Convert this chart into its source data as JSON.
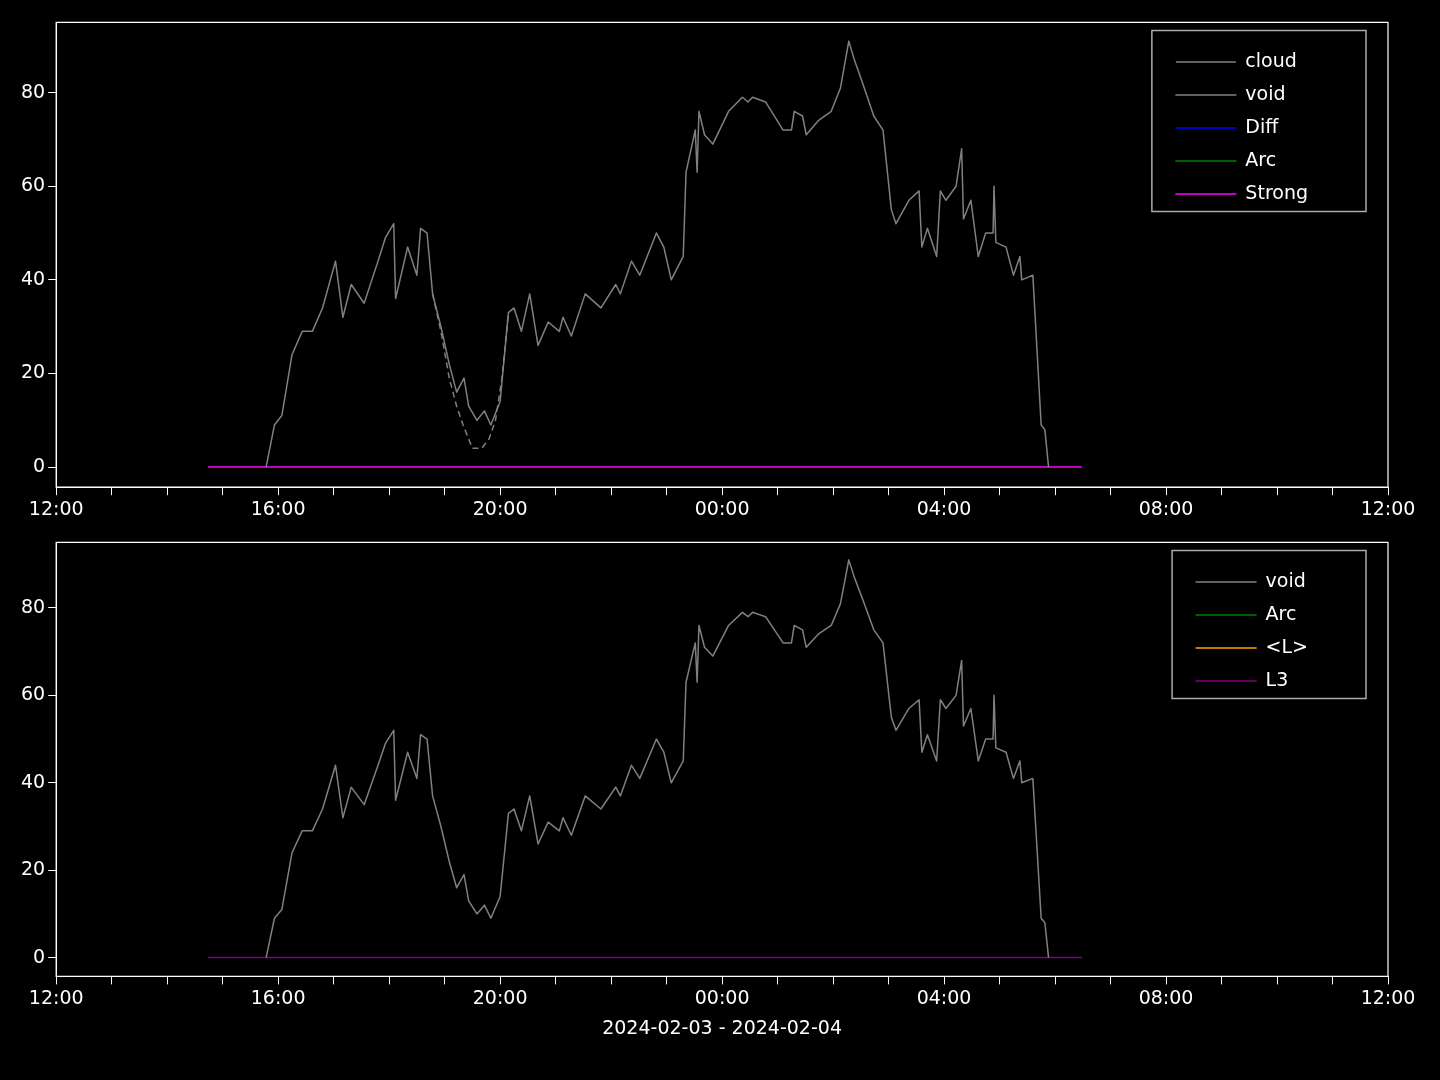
{
  "chart_data": [
    {
      "type": "line",
      "xlim": [
        "2024-02-03T12:00",
        "2024-02-04T12:00"
      ],
      "ylim": [
        -4.3,
        95
      ],
      "yticks": [
        0,
        20,
        40,
        60,
        80
      ],
      "xticks": [
        {
          "value": "2024-02-03T12:00",
          "label": "12:00"
        },
        {
          "value": "2024-02-03T13:00",
          "label": null
        },
        {
          "value": "2024-02-03T14:00",
          "label": null
        },
        {
          "value": "2024-02-03T15:00",
          "label": null
        },
        {
          "value": "2024-02-03T16:00",
          "label": "16:00"
        },
        {
          "value": "2024-02-03T17:00",
          "label": null
        },
        {
          "value": "2024-02-03T18:00",
          "label": null
        },
        {
          "value": "2024-02-03T19:00",
          "label": null
        },
        {
          "value": "2024-02-03T20:00",
          "label": "20:00"
        },
        {
          "value": "2024-02-03T21:00",
          "label": null
        },
        {
          "value": "2024-02-03T22:00",
          "label": null
        },
        {
          "value": "2024-02-03T23:00",
          "label": null
        },
        {
          "value": "2024-02-04T00:00",
          "label": "00:00"
        },
        {
          "value": "2024-02-04T01:00",
          "label": null
        },
        {
          "value": "2024-02-04T02:00",
          "label": null
        },
        {
          "value": "2024-02-04T03:00",
          "label": null
        },
        {
          "value": "2024-02-04T04:00",
          "label": "04:00"
        },
        {
          "value": "2024-02-04T05:00",
          "label": null
        },
        {
          "value": "2024-02-04T06:00",
          "label": null
        },
        {
          "value": "2024-02-04T07:00",
          "label": null
        },
        {
          "value": "2024-02-04T08:00",
          "label": "08:00"
        },
        {
          "value": "2024-02-04T09:00",
          "label": null
        },
        {
          "value": "2024-02-04T10:00",
          "label": null
        },
        {
          "value": "2024-02-04T11:00",
          "label": null
        },
        {
          "value": "2024-02-04T12:00",
          "label": "12:00"
        }
      ],
      "legend": "top right",
      "grid": false,
      "series": [
        {
          "name": "cloud",
          "color": "#808080",
          "line_style": "dashed",
          "x": [
            "2024-02-03T18:47",
            "2024-02-03T18:56",
            "2024-02-03T19:05",
            "2024-02-03T19:13",
            "2024-02-03T19:20",
            "2024-02-03T19:30",
            "2024-02-03T19:40",
            "2024-02-03T19:48",
            "2024-02-03T19:55",
            "2024-02-03T20:02",
            "2024-02-03T20:09"
          ],
          "values": [
            37,
            29,
            19,
            13,
            9,
            4,
            4,
            6,
            10,
            19,
            33
          ]
        },
        {
          "name": "void",
          "color": "#808080",
          "x": [
            "2024-02-03T15:47",
            "2024-02-03T15:56",
            "2024-02-03T16:04",
            "2024-02-03T16:15",
            "2024-02-03T16:26",
            "2024-02-03T16:37",
            "2024-02-03T16:48",
            "2024-02-03T17:02",
            "2024-02-03T17:10",
            "2024-02-03T17:19",
            "2024-02-03T17:33",
            "2024-02-03T17:48",
            "2024-02-03T17:56",
            "2024-02-03T18:05",
            "2024-02-03T18:07",
            "2024-02-03T18:20",
            "2024-02-03T18:30",
            "2024-02-03T18:34",
            "2024-02-03T18:41",
            "2024-02-03T18:47",
            "2024-02-03T18:56",
            "2024-02-03T19:05",
            "2024-02-03T19:13",
            "2024-02-03T19:21",
            "2024-02-03T19:26",
            "2024-02-03T19:35",
            "2024-02-03T19:43",
            "2024-02-03T19:50",
            "2024-02-03T20:00",
            "2024-02-03T20:09",
            "2024-02-03T20:15",
            "2024-02-03T20:23",
            "2024-02-03T20:32",
            "2024-02-03T20:41",
            "2024-02-03T20:52",
            "2024-02-03T21:04",
            "2024-02-03T21:08",
            "2024-02-03T21:17",
            "2024-02-03T21:32",
            "2024-02-03T21:49",
            "2024-02-03T22:05",
            "2024-02-03T22:10",
            "2024-02-03T22:22",
            "2024-02-03T22:31",
            "2024-02-03T22:49",
            "2024-02-03T22:57",
            "2024-02-03T23:05",
            "2024-02-03T23:18",
            "2024-02-03T23:21",
            "2024-02-03T23:31",
            "2024-02-03T23:33",
            "2024-02-03T23:35",
            "2024-02-03T23:41",
            "2024-02-03T23:50",
            "2024-02-04T00:07",
            "2024-02-04T00:22",
            "2024-02-04T00:28",
            "2024-02-04T00:33",
            "2024-02-04T00:47",
            "2024-02-04T01:06",
            "2024-02-04T01:15",
            "2024-02-04T01:18",
            "2024-02-04T01:27",
            "2024-02-04T01:31",
            "2024-02-04T01:44",
            "2024-02-04T01:58",
            "2024-02-04T02:08",
            "2024-02-04T02:17",
            "2024-02-04T02:23",
            "2024-02-04T02:32",
            "2024-02-04T02:44",
            "2024-02-04T02:54",
            "2024-02-04T03:03",
            "2024-02-04T03:08",
            "2024-02-04T03:22",
            "2024-02-04T03:33",
            "2024-02-04T03:36",
            "2024-02-04T03:42",
            "2024-02-04T03:52",
            "2024-02-04T03:56",
            "2024-02-04T04:02",
            "2024-02-04T04:13",
            "2024-02-04T04:19",
            "2024-02-04T04:21",
            "2024-02-04T04:29",
            "2024-02-04T04:37",
            "2024-02-04T04:45",
            "2024-02-04T04:53",
            "2024-02-04T04:54",
            "2024-02-04T04:56",
            "2024-02-04T05:07",
            "2024-02-04T05:15",
            "2024-02-04T05:22",
            "2024-02-04T05:24",
            "2024-02-04T05:36",
            "2024-02-04T05:45",
            "2024-02-04T05:49",
            "2024-02-04T05:53"
          ],
          "values": [
            0,
            9,
            11,
            24,
            29,
            29,
            34,
            44,
            32,
            39,
            35,
            44,
            49,
            52,
            36,
            47,
            41,
            51,
            50,
            37,
            30,
            22,
            16,
            19,
            13,
            10,
            12,
            9,
            14,
            33,
            34,
            29,
            37,
            26,
            31,
            29,
            32,
            28,
            37,
            34,
            39,
            37,
            44,
            41,
            50,
            47,
            40,
            45,
            63,
            72,
            63,
            76,
            71,
            69,
            76,
            79,
            78,
            79,
            78,
            72,
            72,
            76,
            75,
            71,
            74,
            76,
            81,
            91,
            87,
            82,
            75,
            72,
            55,
            52,
            57,
            59,
            47,
            51,
            45,
            59,
            57,
            60,
            68,
            53,
            57,
            45,
            50,
            50,
            60,
            48,
            47,
            41,
            45,
            40,
            41,
            9,
            8,
            0
          ]
        },
        {
          "name": "Diff",
          "color": "#0000ff"
        },
        {
          "name": "Arc",
          "color": "#008000"
        },
        {
          "name": "Strong",
          "color": "#ff00ff",
          "x": [
            "2024-02-03T14:44",
            "2024-02-04T06:29"
          ],
          "values": [
            0,
            0
          ]
        }
      ]
    },
    {
      "type": "line",
      "xlabel": "2024-02-03 - 2024-02-04",
      "xlim": [
        "2024-02-03T12:00",
        "2024-02-04T12:00"
      ],
      "ylim": [
        -4.3,
        95
      ],
      "yticks": [
        0,
        20,
        40,
        60,
        80
      ],
      "xticks": [
        {
          "value": "2024-02-03T12:00",
          "label": "12:00"
        },
        {
          "value": "2024-02-03T13:00",
          "label": null
        },
        {
          "value": "2024-02-03T14:00",
          "label": null
        },
        {
          "value": "2024-02-03T15:00",
          "label": null
        },
        {
          "value": "2024-02-03T16:00",
          "label": "16:00"
        },
        {
          "value": "2024-02-03T17:00",
          "label": null
        },
        {
          "value": "2024-02-03T18:00",
          "label": null
        },
        {
          "value": "2024-02-03T19:00",
          "label": null
        },
        {
          "value": "2024-02-03T20:00",
          "label": "20:00"
        },
        {
          "value": "2024-02-03T21:00",
          "label": null
        },
        {
          "value": "2024-02-03T22:00",
          "label": null
        },
        {
          "value": "2024-02-03T23:00",
          "label": null
        },
        {
          "value": "2024-02-04T00:00",
          "label": "00:00"
        },
        {
          "value": "2024-02-04T01:00",
          "label": null
        },
        {
          "value": "2024-02-04T02:00",
          "label": null
        },
        {
          "value": "2024-02-04T03:00",
          "label": null
        },
        {
          "value": "2024-02-04T04:00",
          "label": "04:00"
        },
        {
          "value": "2024-02-04T05:00",
          "label": null
        },
        {
          "value": "2024-02-04T06:00",
          "label": null
        },
        {
          "value": "2024-02-04T07:00",
          "label": null
        },
        {
          "value": "2024-02-04T08:00",
          "label": "08:00"
        },
        {
          "value": "2024-02-04T09:00",
          "label": null
        },
        {
          "value": "2024-02-04T10:00",
          "label": null
        },
        {
          "value": "2024-02-04T11:00",
          "label": null
        },
        {
          "value": "2024-02-04T12:00",
          "label": "12:00"
        }
      ],
      "legend": "top right",
      "grid": false,
      "series": [
        {
          "name": "void",
          "color": "#808080",
          "x": [
            "2024-02-03T15:47",
            "2024-02-03T15:56",
            "2024-02-03T16:04",
            "2024-02-03T16:15",
            "2024-02-03T16:26",
            "2024-02-03T16:37",
            "2024-02-03T16:48",
            "2024-02-03T17:02",
            "2024-02-03T17:10",
            "2024-02-03T17:19",
            "2024-02-03T17:33",
            "2024-02-03T17:48",
            "2024-02-03T17:56",
            "2024-02-03T18:05",
            "2024-02-03T18:07",
            "2024-02-03T18:20",
            "2024-02-03T18:30",
            "2024-02-03T18:34",
            "2024-02-03T18:41",
            "2024-02-03T18:47",
            "2024-02-03T18:56",
            "2024-02-03T19:05",
            "2024-02-03T19:13",
            "2024-02-03T19:21",
            "2024-02-03T19:26",
            "2024-02-03T19:35",
            "2024-02-03T19:43",
            "2024-02-03T19:50",
            "2024-02-03T20:00",
            "2024-02-03T20:09",
            "2024-02-03T20:15",
            "2024-02-03T20:23",
            "2024-02-03T20:32",
            "2024-02-03T20:41",
            "2024-02-03T20:52",
            "2024-02-03T21:04",
            "2024-02-03T21:08",
            "2024-02-03T21:17",
            "2024-02-03T21:32",
            "2024-02-03T21:49",
            "2024-02-03T22:05",
            "2024-02-03T22:10",
            "2024-02-03T22:22",
            "2024-02-03T22:31",
            "2024-02-03T22:49",
            "2024-02-03T22:57",
            "2024-02-03T23:05",
            "2024-02-03T23:18",
            "2024-02-03T23:21",
            "2024-02-03T23:31",
            "2024-02-03T23:33",
            "2024-02-03T23:35",
            "2024-02-03T23:41",
            "2024-02-03T23:50",
            "2024-02-04T00:07",
            "2024-02-04T00:22",
            "2024-02-04T00:28",
            "2024-02-04T00:33",
            "2024-02-04T00:47",
            "2024-02-04T01:06",
            "2024-02-04T01:15",
            "2024-02-04T01:18",
            "2024-02-04T01:27",
            "2024-02-04T01:31",
            "2024-02-04T01:44",
            "2024-02-04T01:58",
            "2024-02-04T02:08",
            "2024-02-04T02:17",
            "2024-02-04T02:23",
            "2024-02-04T02:32",
            "2024-02-04T02:44",
            "2024-02-04T02:54",
            "2024-02-04T03:03",
            "2024-02-04T03:08",
            "2024-02-04T03:22",
            "2024-02-04T03:33",
            "2024-02-04T03:36",
            "2024-02-04T03:42",
            "2024-02-04T03:52",
            "2024-02-04T03:56",
            "2024-02-04T04:02",
            "2024-02-04T04:13",
            "2024-02-04T04:19",
            "2024-02-04T04:21",
            "2024-02-04T04:29",
            "2024-02-04T04:37",
            "2024-02-04T04:45",
            "2024-02-04T04:53",
            "2024-02-04T04:54",
            "2024-02-04T04:56",
            "2024-02-04T05:07",
            "2024-02-04T05:15",
            "2024-02-04T05:22",
            "2024-02-04T05:24",
            "2024-02-04T05:36",
            "2024-02-04T05:45",
            "2024-02-04T05:49",
            "2024-02-04T05:53"
          ],
          "values": [
            0,
            9,
            11,
            24,
            29,
            29,
            34,
            44,
            32,
            39,
            35,
            44,
            49,
            52,
            36,
            47,
            41,
            51,
            50,
            37,
            30,
            22,
            16,
            19,
            13,
            10,
            12,
            9,
            14,
            33,
            34,
            29,
            37,
            26,
            31,
            29,
            32,
            28,
            37,
            34,
            39,
            37,
            44,
            41,
            50,
            47,
            40,
            45,
            63,
            72,
            63,
            76,
            71,
            69,
            76,
            79,
            78,
            79,
            78,
            72,
            72,
            76,
            75,
            71,
            74,
            76,
            81,
            91,
            87,
            82,
            75,
            72,
            55,
            52,
            57,
            59,
            47,
            51,
            45,
            59,
            57,
            60,
            68,
            53,
            57,
            45,
            50,
            50,
            60,
            48,
            47,
            41,
            45,
            40,
            41,
            9,
            8,
            0
          ]
        },
        {
          "name": "Arc",
          "color": "#008000"
        },
        {
          "name": "<L>",
          "color": "#ffa500"
        },
        {
          "name": "L3",
          "color": "#800080",
          "x": [
            "2024-02-03T14:44",
            "2024-02-04T06:29"
          ],
          "values": [
            0,
            0
          ]
        }
      ]
    }
  ]
}
